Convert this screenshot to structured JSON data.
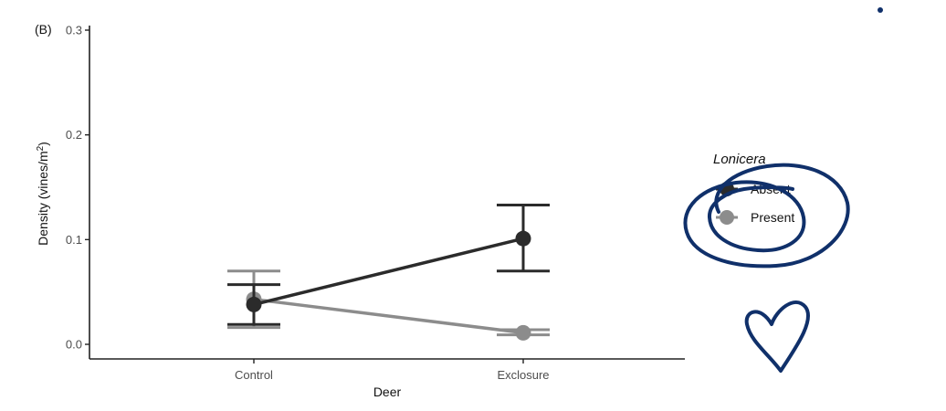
{
  "chart_data": {
    "type": "line",
    "panel_label": "(B)",
    "xlabel": "Deer",
    "ylabel": "Density (vines/m",
    "ylabel_sup": "2",
    "ylabel_close": ")",
    "categories": [
      "Control",
      "Exclosure"
    ],
    "ylim": [
      0,
      0.3
    ],
    "yticks": [
      0.0,
      0.1,
      0.2,
      0.3
    ],
    "ytick_labels": [
      "0.0",
      "0.1",
      "0.2",
      "0.3"
    ],
    "grid": false,
    "legend": {
      "title": "Lonicera",
      "placement": "right",
      "entries": [
        "Absent",
        "Present"
      ]
    },
    "series": [
      {
        "name": "Absent",
        "color": "#2b2b2b",
        "values": [
          0.038,
          0.101
        ],
        "err_low": [
          0.019,
          0.07
        ],
        "err_high": [
          0.057,
          0.133
        ]
      },
      {
        "name": "Present",
        "color": "#8c8c8c",
        "values": [
          0.043,
          0.011
        ],
        "err_low": [
          0.016,
          0.009
        ],
        "err_high": [
          0.07,
          0.014
        ]
      }
    ]
  },
  "annotations": {
    "ink_color": "#10306a",
    "marks": [
      "circle-scribble",
      "heart-doodle",
      "dot"
    ]
  }
}
